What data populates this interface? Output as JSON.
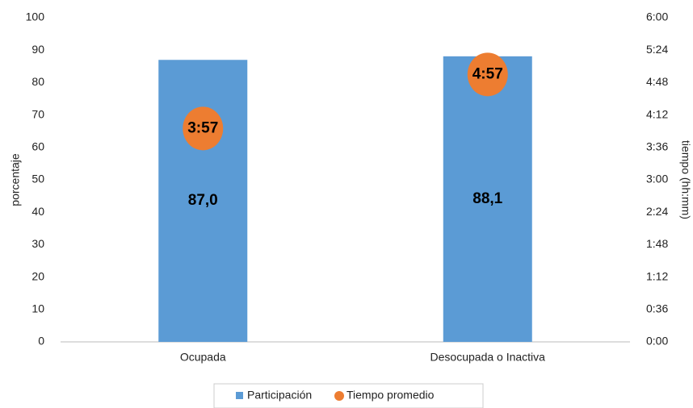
{
  "chart_data": {
    "type": "bar",
    "categories": [
      "Ocupada",
      "Desocupada o Inactiva"
    ],
    "series": [
      {
        "name": "Participación",
        "type": "bar",
        "color": "#5b9bd5",
        "values": [
          87.0,
          88.1
        ],
        "value_labels": [
          "87,0",
          "88,1"
        ]
      },
      {
        "name": "Tiempo promedio",
        "type": "scatter",
        "axis": "y2",
        "color": "#ed7d31",
        "values": [
          237,
          297
        ],
        "value_labels": [
          "3:57",
          "4:57"
        ]
      }
    ],
    "ylabel": "porcentaje",
    "y2label": "tiempo  (hh:mm)",
    "ylim": [
      0,
      100
    ],
    "yticks": [
      0,
      10,
      20,
      30,
      40,
      50,
      60,
      70,
      80,
      90,
      100
    ],
    "y2lim": [
      0,
      360
    ],
    "y2ticks": [
      {
        "value": 0,
        "label": "0:00"
      },
      {
        "value": 36,
        "label": "0:36"
      },
      {
        "value": 72,
        "label": "1:12"
      },
      {
        "value": 108,
        "label": "1:48"
      },
      {
        "value": 144,
        "label": "2:24"
      },
      {
        "value": 180,
        "label": "3:00"
      },
      {
        "value": 216,
        "label": "3:36"
      },
      {
        "value": 252,
        "label": "4:12"
      },
      {
        "value": 288,
        "label": "4:48"
      },
      {
        "value": 324,
        "label": "5:24"
      },
      {
        "value": 360,
        "label": "6:00"
      }
    ],
    "grid": false,
    "legend": "bottom"
  }
}
